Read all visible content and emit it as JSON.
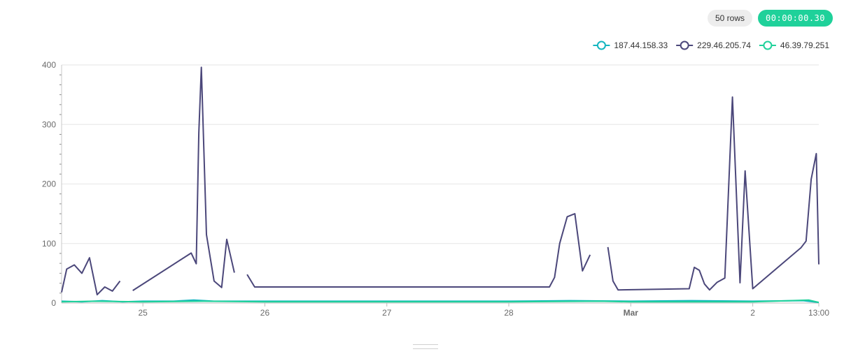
{
  "toolbar": {
    "rows_label": "50 rows",
    "timer_label": "00:00:00.30"
  },
  "colors": {
    "timer_bg": "#1fd19a",
    "series": [
      "#15b6c0",
      "#4b477a",
      "#1fd19a"
    ]
  },
  "chart_data": {
    "type": "line",
    "x_axis_type": "time",
    "x_ticks": [
      {
        "label": "25",
        "x": "2024-02-25T00:00",
        "bold": false
      },
      {
        "label": "26",
        "x": "2024-02-26T00:00",
        "bold": false
      },
      {
        "label": "27",
        "x": "2024-02-27T00:00",
        "bold": false
      },
      {
        "label": "28",
        "x": "2024-02-28T00:00",
        "bold": false
      },
      {
        "label": "Mar",
        "x": "2024-02-29T00:00",
        "bold": true
      },
      {
        "label": "2",
        "x": "2024-03-01T00:00",
        "bold": false
      },
      {
        "label": "13:00",
        "x": "2024-03-01T13:00",
        "bold": false
      }
    ],
    "xlim": [
      "2024-02-24T08:00",
      "2024-03-01T13:00"
    ],
    "y_ticks": [
      0,
      100,
      200,
      300,
      400
    ],
    "ylim": [
      0,
      400
    ],
    "grid": true,
    "legend_position": "top-right",
    "series": [
      {
        "name": "187.44.158.33",
        "color": "#15b6c0",
        "points": [
          [
            "2024-02-24T08:00",
            3
          ],
          [
            "2024-02-24T12:00",
            2
          ],
          [
            "2024-02-24T16:00",
            4
          ],
          [
            "2024-02-24T20:00",
            2
          ],
          [
            "2024-02-25T00:00",
            3
          ],
          [
            "2024-02-25T06:00",
            3
          ],
          [
            "2024-02-25T10:00",
            5
          ],
          [
            "2024-02-25T14:00",
            3
          ],
          [
            "2024-02-26T00:00",
            3
          ],
          [
            "2024-02-27T00:00",
            3
          ],
          [
            "2024-02-28T00:00",
            3
          ],
          [
            "2024-02-28T12:00",
            4
          ],
          [
            "2024-02-29T00:00",
            3
          ],
          [
            "2024-02-29T12:00",
            4
          ],
          [
            "2024-03-01T00:00",
            3
          ],
          [
            "2024-03-01T10:00",
            4
          ],
          [
            "2024-03-01T13:00",
            1
          ]
        ]
      },
      {
        "name": "229.46.205.74",
        "color": "#4b477a",
        "points": [
          [
            "2024-02-24T08:00",
            18
          ],
          [
            "2024-02-24T09:00",
            57
          ],
          [
            "2024-02-24T10:30",
            64
          ],
          [
            "2024-02-24T12:00",
            50
          ],
          [
            "2024-02-24T13:30",
            76
          ],
          [
            "2024-02-24T15:00",
            14
          ],
          [
            "2024-02-24T16:30",
            27
          ],
          [
            "2024-02-24T18:00",
            20
          ],
          [
            "2024-02-24T19:30",
            37
          ],
          null,
          [
            "2024-02-24T22:00",
            21
          ],
          [
            "2024-02-25T09:30",
            84
          ],
          [
            "2024-02-25T10:30",
            66
          ],
          [
            "2024-02-25T11:00",
            286
          ],
          [
            "2024-02-25T11:30",
            396
          ],
          [
            "2024-02-25T12:30",
            115
          ],
          [
            "2024-02-25T14:00",
            37
          ],
          [
            "2024-02-25T15:30",
            26
          ],
          [
            "2024-02-25T16:30",
            107
          ],
          [
            "2024-02-25T18:00",
            51
          ],
          null,
          [
            "2024-02-25T20:30",
            48
          ],
          [
            "2024-02-25T22:00",
            27
          ],
          [
            "2024-02-28T08:00",
            27
          ],
          [
            "2024-02-28T09:00",
            43
          ],
          [
            "2024-02-28T10:00",
            100
          ],
          [
            "2024-02-28T11:30",
            145
          ],
          [
            "2024-02-28T13:00",
            150
          ],
          [
            "2024-02-28T14:30",
            54
          ],
          [
            "2024-02-28T16:00",
            81
          ],
          null,
          [
            "2024-02-28T19:30",
            94
          ],
          [
            "2024-02-28T20:30",
            37
          ],
          [
            "2024-02-28T21:30",
            22
          ],
          [
            "2024-02-29T11:30",
            24
          ],
          [
            "2024-02-29T12:30",
            60
          ],
          [
            "2024-02-29T13:30",
            55
          ],
          [
            "2024-02-29T14:30",
            32
          ],
          [
            "2024-02-29T15:30",
            22
          ],
          [
            "2024-02-29T17:00",
            35
          ],
          [
            "2024-02-29T18:30",
            42
          ],
          [
            "2024-02-29T20:00",
            346
          ],
          [
            "2024-02-29T21:30",
            34
          ],
          [
            "2024-02-29T22:30",
            222
          ],
          [
            "2024-02-30T00:00",
            24
          ],
          [
            "2024-03-01T09:30",
            93
          ],
          [
            "2024-03-01T10:30",
            104
          ],
          [
            "2024-03-01T11:30",
            208
          ],
          [
            "2024-03-01T12:30",
            251
          ],
          [
            "2024-03-01T13:00",
            65
          ]
        ]
      },
      {
        "name": "46.39.79.251",
        "color": "#1fd19a",
        "points": [
          [
            "2024-02-24T08:00",
            2
          ],
          [
            "2024-02-24T14:00",
            3
          ],
          [
            "2024-02-25T00:00",
            2
          ],
          [
            "2024-02-25T12:00",
            3
          ],
          [
            "2024-02-26T00:00",
            2
          ],
          [
            "2024-02-27T00:00",
            2
          ],
          [
            "2024-02-28T00:00",
            2
          ],
          [
            "2024-02-28T18:00",
            3
          ],
          [
            "2024-02-29T00:00",
            2
          ],
          [
            "2024-02-29T18:00",
            2
          ],
          [
            "2024-03-01T00:00",
            2
          ],
          [
            "2024-03-01T11:00",
            5
          ],
          [
            "2024-03-01T13:00",
            1
          ]
        ]
      }
    ]
  }
}
